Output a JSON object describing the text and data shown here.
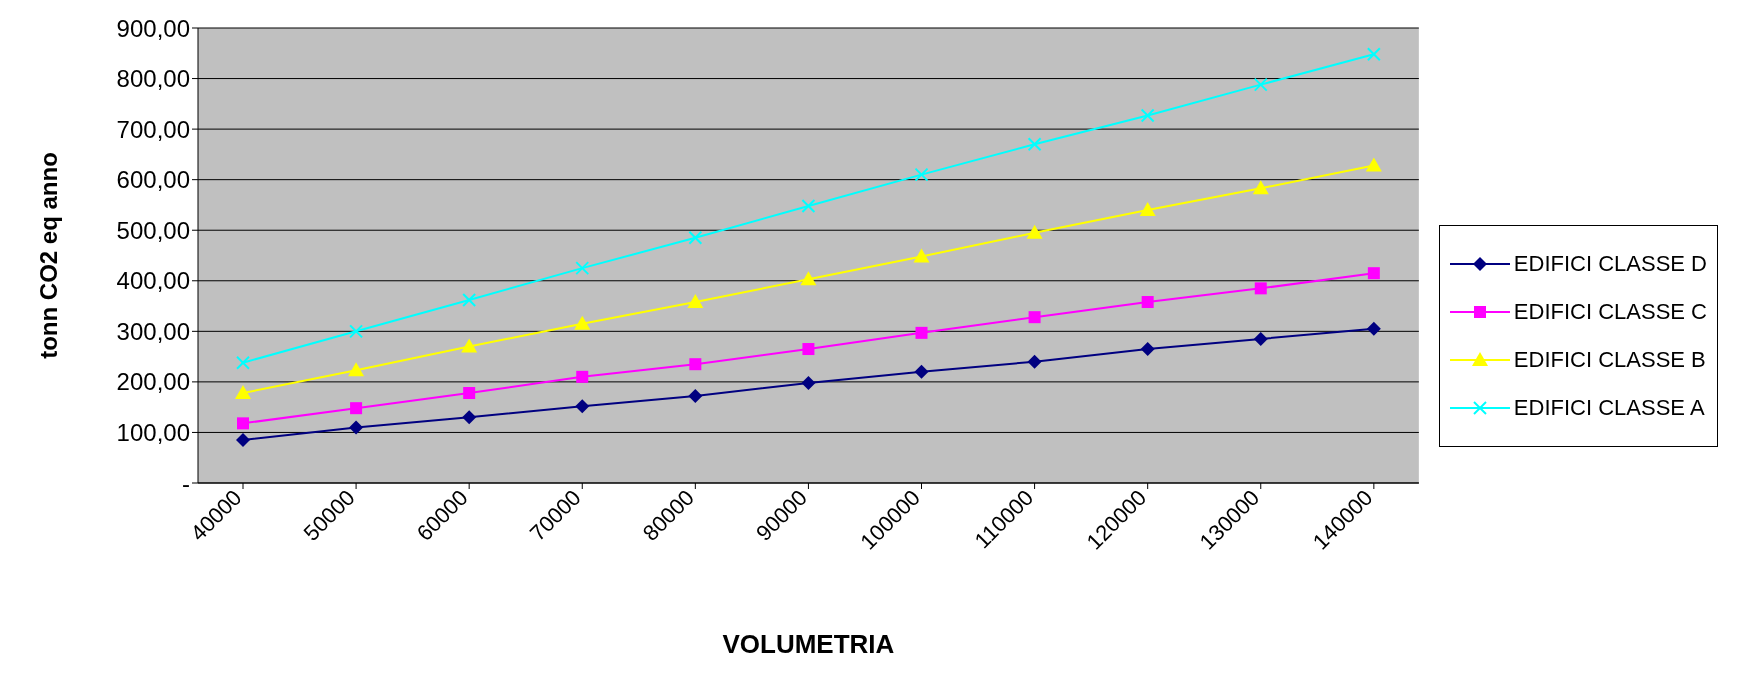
{
  "chart_data": {
    "type": "line",
    "xlabel": "VOLUMETRIA",
    "ylabel": "tonn CO2 eq anno",
    "categories": [
      "40000",
      "50000",
      "60000",
      "70000",
      "80000",
      "90000",
      "100000",
      "110000",
      "120000",
      "130000",
      "140000"
    ],
    "series": [
      {
        "name": "EDIFICI CLASSE D",
        "color": "#000080",
        "marker": "diamond",
        "values": [
          85,
          110,
          130,
          152,
          172,
          198,
          220,
          240,
          265,
          285,
          305
        ]
      },
      {
        "name": "EDIFICI CLASSE C",
        "color": "#ff00ff",
        "marker": "square",
        "values": [
          118,
          148,
          178,
          210,
          235,
          265,
          297,
          328,
          358,
          385,
          415
        ]
      },
      {
        "name": "EDIFICI CLASSE B",
        "color": "#ffff00",
        "marker": "triangle",
        "values": [
          178,
          223,
          270,
          315,
          358,
          403,
          448,
          495,
          540,
          583,
          628
        ]
      },
      {
        "name": "EDIFICI CLASSE A",
        "color": "#00ffff",
        "marker": "cross",
        "values": [
          238,
          300,
          362,
          425,
          485,
          548,
          610,
          670,
          727,
          788,
          848
        ]
      }
    ],
    "ylim": [
      0,
      900
    ],
    "yticks": [
      {
        "value": 0,
        "label": "-"
      },
      {
        "value": 100,
        "label": "100,00"
      },
      {
        "value": 200,
        "label": "200,00"
      },
      {
        "value": 300,
        "label": "300,00"
      },
      {
        "value": 400,
        "label": "400,00"
      },
      {
        "value": 500,
        "label": "500,00"
      },
      {
        "value": 600,
        "label": "600,00"
      },
      {
        "value": 700,
        "label": "700,00"
      },
      {
        "value": 800,
        "label": "800,00"
      },
      {
        "value": 900,
        "label": "900,00"
      }
    ],
    "grid": "y",
    "legend": "right",
    "line_style": "solid"
  }
}
